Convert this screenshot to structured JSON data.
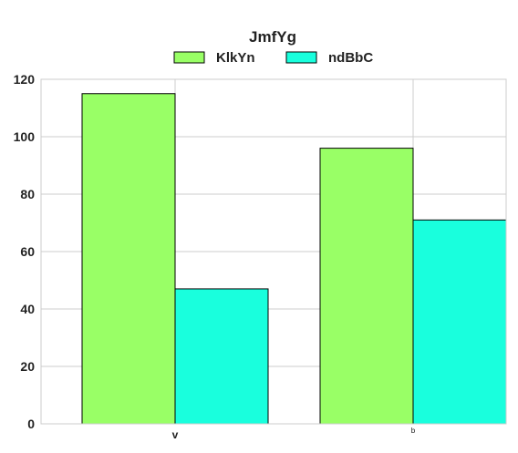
{
  "chart_data": {
    "type": "bar",
    "title": "JmfYg",
    "categories": [
      "v",
      "b"
    ],
    "series": [
      {
        "name": "KlkYn",
        "values": [
          115,
          96
        ],
        "color": "#99ff66"
      },
      {
        "name": "ndBbC",
        "values": [
          47,
          71
        ],
        "color": "#19ffdd"
      }
    ],
    "xlabel": "",
    "ylabel": "",
    "ylim": [
      0,
      120
    ],
    "yticks": [
      0,
      20,
      40,
      60,
      80,
      100,
      120
    ],
    "grid": true,
    "legend": "top-center"
  }
}
